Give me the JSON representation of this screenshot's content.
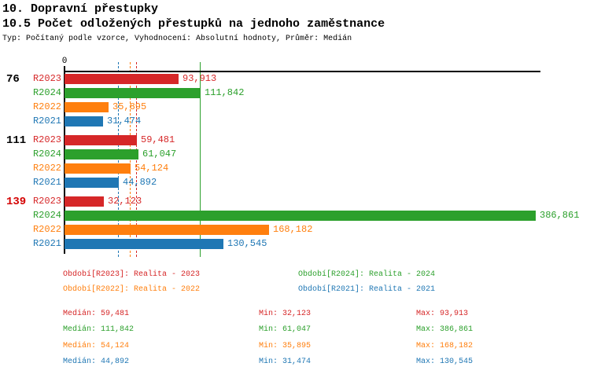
{
  "header": {
    "title": "10. Dopravní přestupky",
    "subtitle": "10.5 Počet odložených přestupků na jednoho zaměstnance",
    "meta": "Typ: Počítaný podle vzorce, Vyhodnocení: Absolutní hodnoty, Průměr: Medián"
  },
  "colors": {
    "R2023": "#d62728",
    "R2024": "#2ca02c",
    "R2022": "#ff7f0e",
    "R2021": "#1f77b4",
    "axis": "#000000",
    "group_label_default": "#000000",
    "group_label_alert": "#d40000"
  },
  "chart_data": {
    "type": "bar",
    "orientation": "horizontal",
    "x_origin_label": "0",
    "xlim": [
      0,
      391000
    ],
    "grid": "off",
    "groups": [
      {
        "label": "76",
        "label_color": "#000000",
        "bars": [
          {
            "series": "R2023",
            "value": 93913,
            "label": "93,913"
          },
          {
            "series": "R2024",
            "value": 111842,
            "label": "111,842"
          },
          {
            "series": "R2022",
            "value": 35895,
            "label": "35,895"
          },
          {
            "series": "R2021",
            "value": 31474,
            "label": "31,474"
          }
        ]
      },
      {
        "label": "111",
        "label_color": "#000000",
        "bars": [
          {
            "series": "R2023",
            "value": 59481,
            "label": "59,481"
          },
          {
            "series": "R2024",
            "value": 61047,
            "label": "61,047"
          },
          {
            "series": "R2022",
            "value": 54124,
            "label": "54,124"
          },
          {
            "series": "R2021",
            "value": 44892,
            "label": "44,892"
          }
        ]
      },
      {
        "label": "139",
        "label_color": "#d40000",
        "bars": [
          {
            "series": "R2023",
            "value": 32123,
            "label": "32,123"
          },
          {
            "series": "R2024",
            "value": 386861,
            "label": "386,861"
          },
          {
            "series": "R2022",
            "value": 168182,
            "label": "168,182"
          },
          {
            "series": "R2021",
            "value": 130545,
            "label": "130,545"
          }
        ]
      }
    ],
    "median_lines": [
      {
        "series": "R2021",
        "value": 44892,
        "style": "dashed"
      },
      {
        "series": "R2022",
        "value": 54124,
        "style": "dashed"
      },
      {
        "series": "R2023",
        "value": 59481,
        "style": "dashed"
      },
      {
        "series": "R2024",
        "value": 111842,
        "style": "solid"
      }
    ]
  },
  "legend": {
    "items": [
      {
        "series": "R2023",
        "text": "Období[R2023]: Realita - 2023"
      },
      {
        "series": "R2024",
        "text": "Období[R2024]: Realita - 2024"
      },
      {
        "series": "R2022",
        "text": "Období[R2022]: Realita - 2022"
      },
      {
        "series": "R2021",
        "text": "Období[R2021]: Realita - 2021"
      }
    ]
  },
  "stats": {
    "labels": {
      "median": "Medián",
      "min": "Min",
      "max": "Max"
    },
    "rows": [
      {
        "series": "R2023",
        "median": "59,481",
        "min": "32,123",
        "max": "93,913"
      },
      {
        "series": "R2024",
        "median": "111,842",
        "min": "61,047",
        "max": "386,861"
      },
      {
        "series": "R2022",
        "median": "54,124",
        "min": "35,895",
        "max": "168,182"
      },
      {
        "series": "R2021",
        "median": "44,892",
        "min": "31,474",
        "max": "130,545"
      }
    ]
  }
}
